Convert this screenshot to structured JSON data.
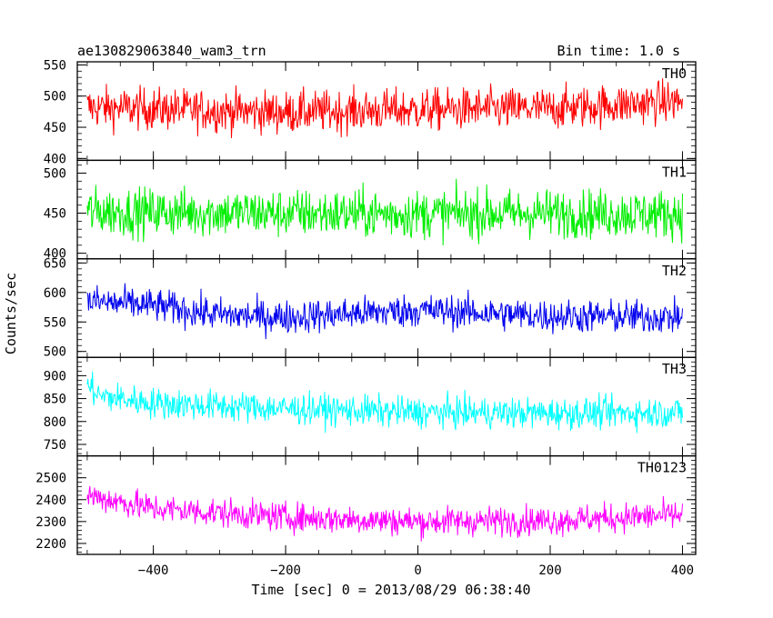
{
  "chart_data": {
    "type": "line",
    "title_left": "ae130829063840_wam3_trn",
    "title_right": "Bin time: 1.0 s",
    "xlabel": "Time [sec] 0 = 2013/08/29 06:38:40",
    "ylabel": "Counts/sec",
    "xlim": [
      -515,
      420
    ],
    "x_ticks": [
      -400,
      -200,
      0,
      200,
      400
    ],
    "x_start": -500,
    "x_end": 400,
    "bin": 1.0,
    "panels": [
      {
        "name": "TH0",
        "color": "#ff0000",
        "ylim": [
          397,
          555
        ],
        "yticks": [
          400,
          450,
          500,
          550
        ],
        "mean": 480,
        "amp": 38,
        "trend": [
          [
            -500,
            482
          ],
          [
            -200,
            474
          ],
          [
            0,
            478
          ],
          [
            200,
            480
          ],
          [
            400,
            492
          ]
        ]
      },
      {
        "name": "TH1",
        "color": "#00ee00",
        "ylim": [
          393,
          516
        ],
        "yticks": [
          400,
          450,
          500
        ],
        "mean": 450,
        "amp": 34,
        "trend": [
          [
            -500,
            452
          ],
          [
            -200,
            450
          ],
          [
            0,
            449
          ],
          [
            200,
            450
          ],
          [
            400,
            449
          ]
        ]
      },
      {
        "name": "TH2",
        "color": "#0000ee",
        "ylim": [
          490,
          657
        ],
        "yticks": [
          500,
          550,
          600,
          650
        ],
        "mean": 565,
        "amp": 32,
        "trend": [
          [
            -500,
            585
          ],
          [
            -400,
            578
          ],
          [
            -300,
            562
          ],
          [
            -200,
            558
          ],
          [
            0,
            570
          ],
          [
            200,
            560
          ],
          [
            400,
            558
          ]
        ]
      },
      {
        "name": "TH3",
        "color": "#00ffff",
        "ylim": [
          725,
          940
        ],
        "yticks": [
          750,
          800,
          850,
          900
        ],
        "mean": 830,
        "amp": 38,
        "trend": [
          [
            -500,
            880
          ],
          [
            -480,
            855
          ],
          [
            -400,
            840
          ],
          [
            -200,
            828
          ],
          [
            0,
            820
          ],
          [
            200,
            818
          ],
          [
            400,
            820
          ]
        ]
      },
      {
        "name": "TH0123",
        "color": "#ff00ff",
        "ylim": [
          2150,
          2600
        ],
        "yticks": [
          2200,
          2300,
          2400,
          2500
        ],
        "mean": 2330,
        "amp": 75,
        "trend": [
          [
            -500,
            2420
          ],
          [
            -400,
            2360
          ],
          [
            -200,
            2320
          ],
          [
            0,
            2300
          ],
          [
            200,
            2305
          ],
          [
            400,
            2330
          ]
        ]
      }
    ]
  }
}
